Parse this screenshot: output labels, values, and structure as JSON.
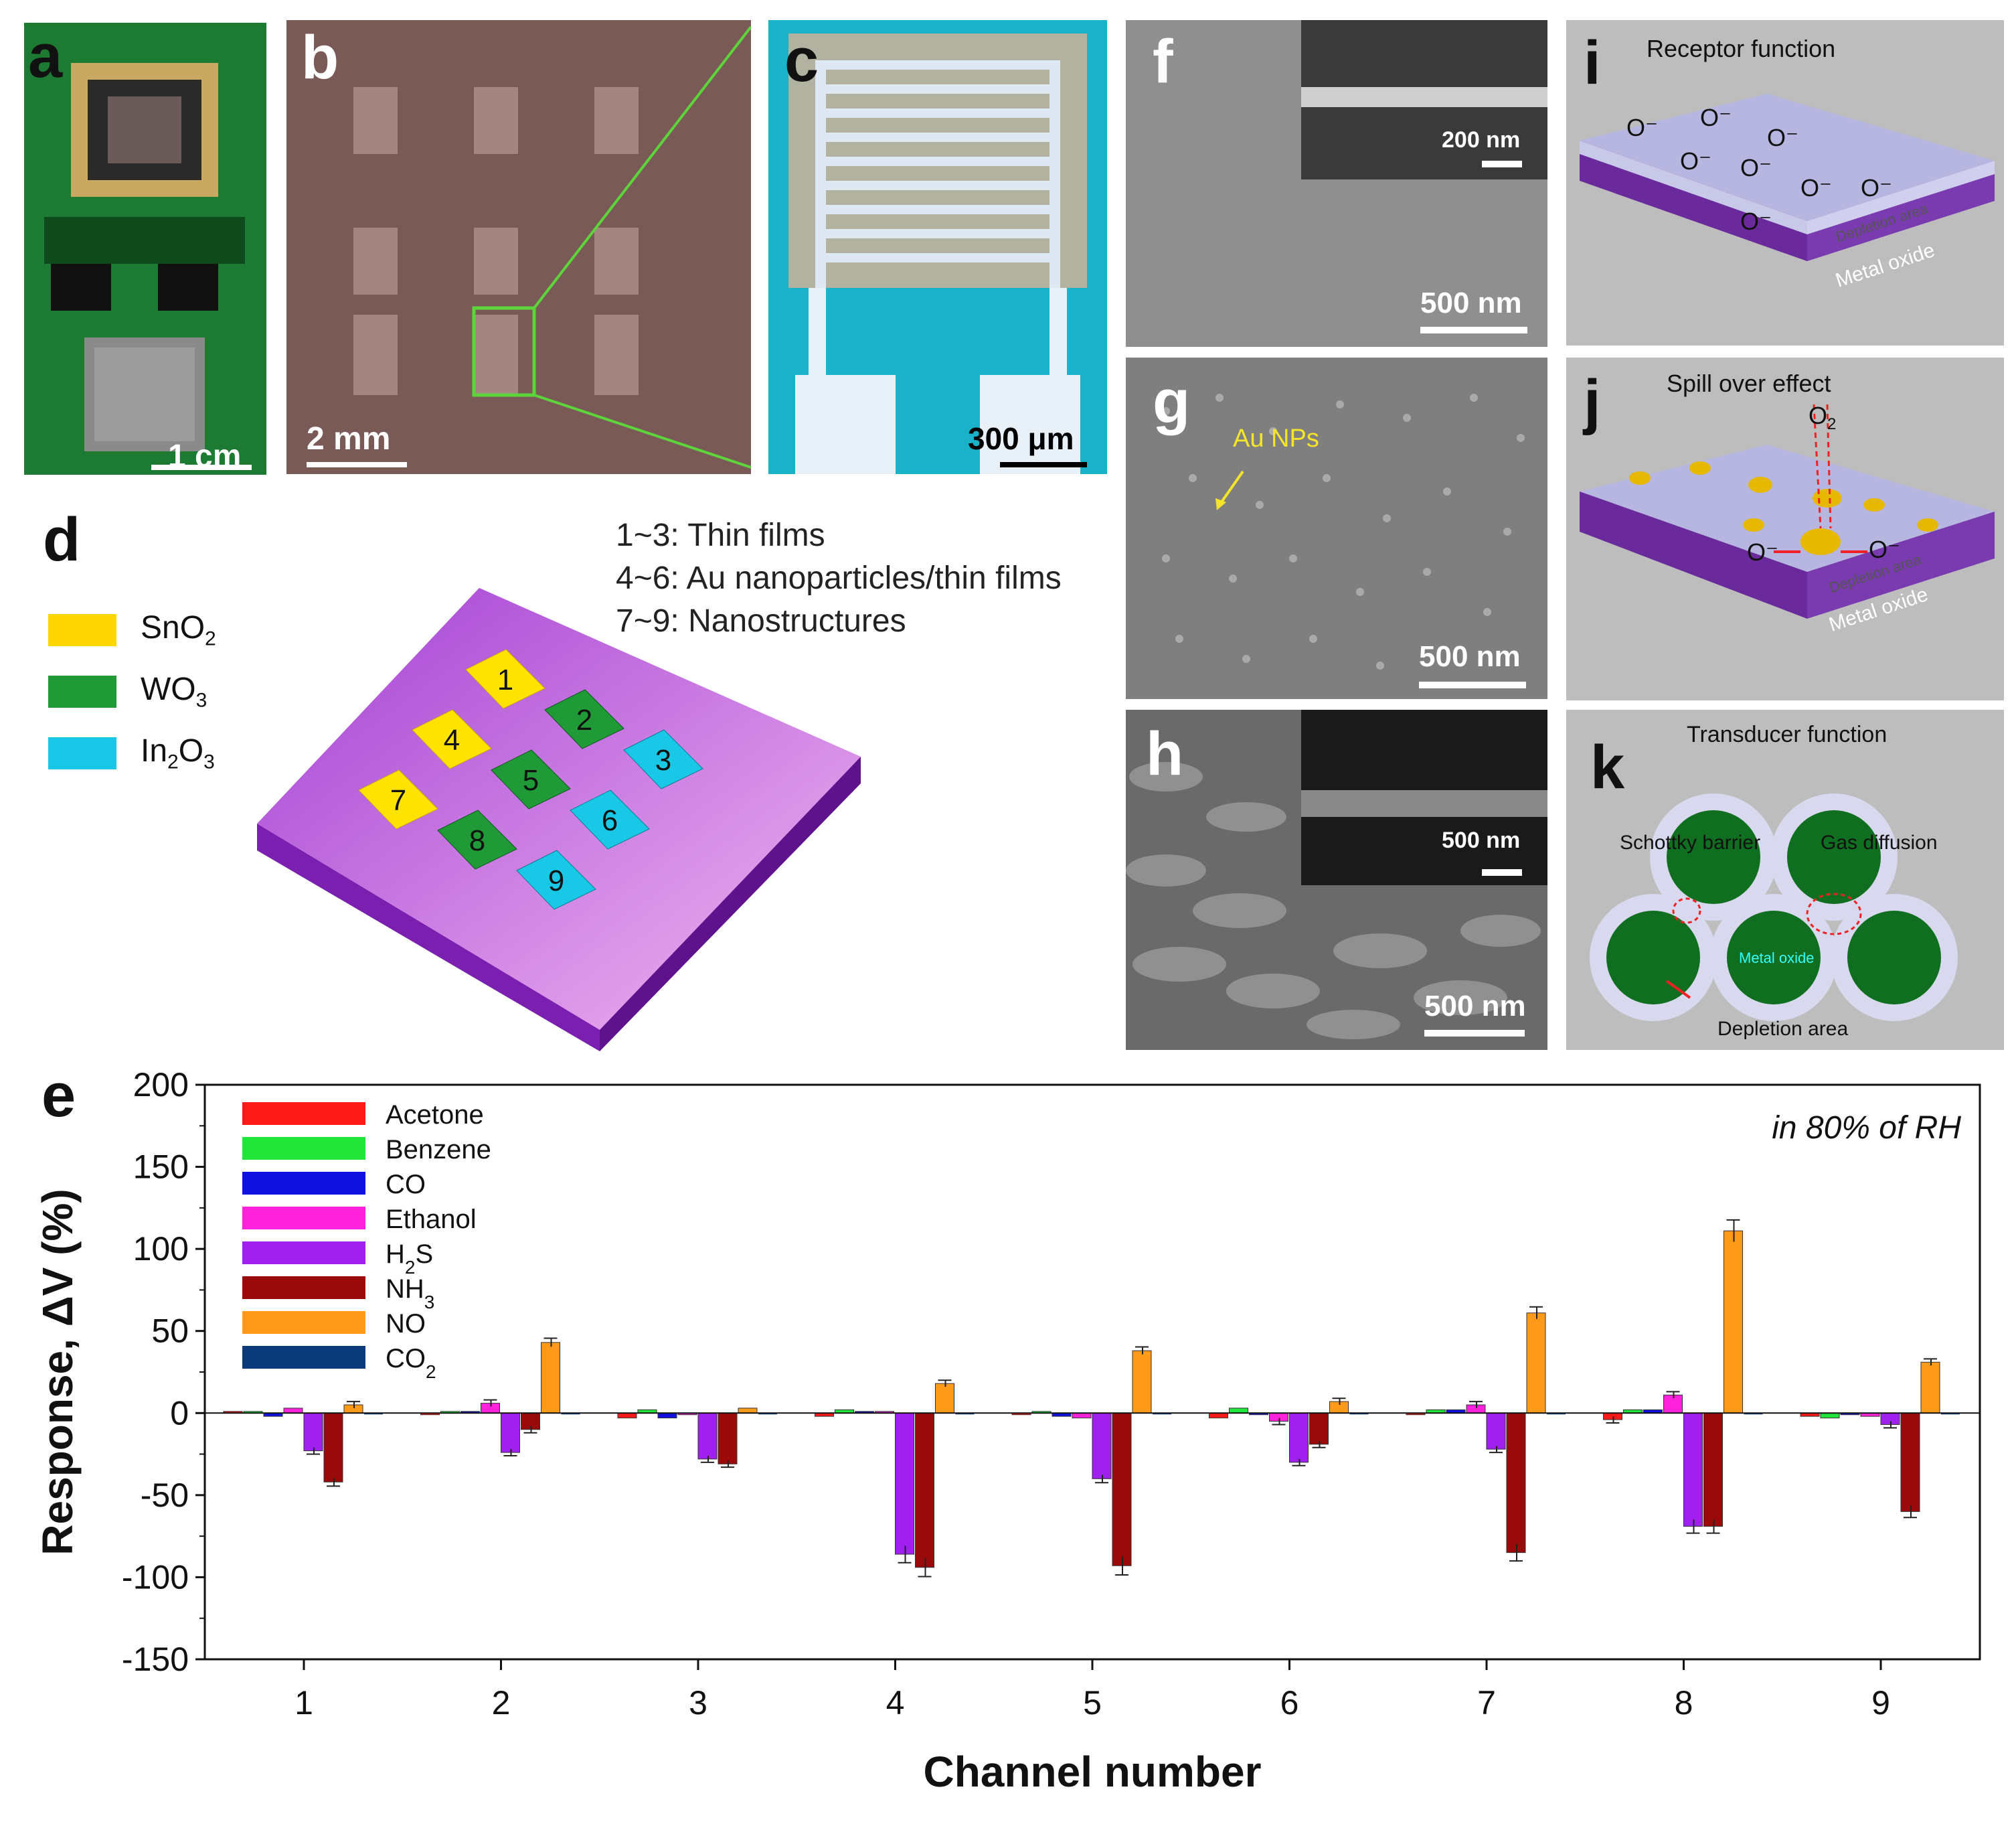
{
  "panels": {
    "a": {
      "label": "a",
      "scale": "1 cm"
    },
    "b": {
      "label": "b",
      "scale": "2 mm"
    },
    "c": {
      "label": "c",
      "scale": "300 μm"
    },
    "d": {
      "label": "d",
      "legend": [
        {
          "name": "SnO",
          "sub": "2",
          "color": "#ffd700"
        },
        {
          "name": "WO",
          "sub": "3",
          "color": "#1f9a37"
        },
        {
          "name": "In",
          "sub": "2",
          "name2": "O",
          "sub2": "3",
          "color": "#19c8e6"
        }
      ],
      "notes": [
        "1~3: Thin films",
        "4~6: Au nanoparticles/thin  films",
        "7~9: Nanostructures"
      ],
      "cells": [
        "1",
        "2",
        "3",
        "4",
        "5",
        "6",
        "7",
        "8",
        "9"
      ]
    },
    "f": {
      "label": "f",
      "scale": "500 nm",
      "inset_scale": "200 nm"
    },
    "g": {
      "label": "g",
      "scale": "500 nm",
      "annotation": "Au NPs"
    },
    "h": {
      "label": "h",
      "scale": "500 nm",
      "inset_scale": "500 nm"
    },
    "i": {
      "label": "i",
      "title": "Receptor function",
      "layer1": "Depletion area",
      "layer2": "Metal oxide",
      "ion": "O⁻"
    },
    "j": {
      "label": "j",
      "title": "Spill over effect",
      "gas": "O",
      "gas_sub": "2",
      "layer1": "Depletion area",
      "layer2": "Metal oxide",
      "ion": "O⁻"
    },
    "k": {
      "label": "k",
      "title": "Transducer function",
      "schottky": "Schottky barrier",
      "diffusion": "Gas diffusion",
      "core": "Metal oxide",
      "depletion": "Depletion area"
    },
    "e": {
      "label": "e"
    }
  },
  "colors": {
    "Acetone": "#ff1a1a",
    "Benzene": "#22e53a",
    "CO": "#1010e0",
    "Ethanol": "#ff22dd",
    "H2S": "#a020f0",
    "NH3": "#9b0a0a",
    "NO": "#ff9a1a",
    "CO2": "#0a3a7a"
  },
  "chart_data": {
    "type": "bar",
    "title": "",
    "annotation": "in 80% of RH",
    "xlabel": "Channel number",
    "ylabel": "Response, ΔV (%)",
    "ylim": [
      -150,
      200
    ],
    "yticks": [
      -150,
      -100,
      -50,
      0,
      50,
      100,
      150,
      200
    ],
    "categories": [
      "1",
      "2",
      "3",
      "4",
      "5",
      "6",
      "7",
      "8",
      "9"
    ],
    "series": [
      {
        "name": "Acetone",
        "label": "Acetone",
        "values": [
          1,
          -1,
          -3,
          -2,
          -1,
          -3,
          -1,
          -4,
          -2
        ]
      },
      {
        "name": "Benzene",
        "label": "Benzene",
        "values": [
          1,
          1,
          2,
          2,
          1,
          3,
          2,
          2,
          -3
        ]
      },
      {
        "name": "CO",
        "label": "CO",
        "values": [
          -2,
          1,
          -3,
          1,
          -2,
          -1,
          2,
          2,
          -1
        ]
      },
      {
        "name": "Ethanol",
        "label": "Ethanol",
        "values": [
          3,
          6,
          -1,
          1,
          -3,
          -5,
          5,
          11,
          -2
        ]
      },
      {
        "name": "H2S",
        "label": "H",
        "label_sub": "2",
        "label_tail": "S",
        "values": [
          -23,
          -24,
          -28,
          -86,
          -40,
          -30,
          -22,
          -69,
          -7
        ]
      },
      {
        "name": "NH3",
        "label": "NH",
        "label_sub": "3",
        "label_tail": "",
        "values": [
          -42,
          -10,
          -31,
          -94,
          -93,
          -19,
          -85,
          -69,
          -60
        ]
      },
      {
        "name": "NO",
        "label": "NO",
        "values": [
          5,
          43,
          3,
          18,
          38,
          7,
          61,
          111,
          31
        ]
      },
      {
        "name": "CO2",
        "label": "CO",
        "label_sub": "2",
        "label_tail": "",
        "values": [
          0,
          0,
          0,
          0,
          0,
          0,
          0,
          0,
          0
        ]
      }
    ]
  }
}
